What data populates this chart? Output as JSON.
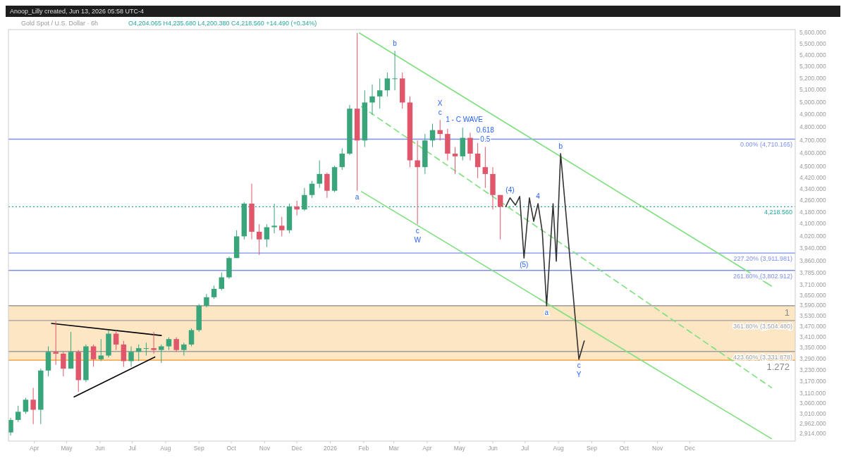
{
  "chart_data": {
    "type": "candlestick",
    "title": "Gold Spot / U.S. Dollar · 6h",
    "subtitle": "O4,204.065 H4,235.680 L4,200.380 C4,218.560 +14.490 (+0.34%)",
    "annotations": [
      "Anoop_Lilly created, Jun 13, 2026 05:58 UTC-4",
      {
        "text": "a",
        "x": "2026-01-26",
        "y": 4330
      },
      {
        "text": "b",
        "x": "2026-03-02",
        "y": 5440
      },
      {
        "text": "c",
        "x": "2026-03-23",
        "y": 4100
      },
      {
        "text": "W",
        "x": "2026-03-23",
        "y": 4100
      },
      {
        "text": "c",
        "x": "2026-04-13",
        "y": 4860
      },
      {
        "text": "X",
        "x": "2026-04-13",
        "y": 4860
      },
      {
        "text": "1 - C WAVE",
        "x": "2026-04-13",
        "y": 4860
      },
      {
        "text": "0.5",
        "x": "2026-05-25",
        "y": 4650
      },
      {
        "text": "0.618",
        "x": "2026-05-25",
        "y": 4650
      },
      {
        "text": "(4)",
        "x": "2026-06-17",
        "y": 4280
      },
      {
        "text": "4",
        "x": "2026-07-13",
        "y": 4240
      },
      {
        "text": "(5)",
        "x": "2026-06-30",
        "y": 3880
      },
      {
        "text": "a",
        "x": "2026-07-21",
        "y": 3590
      },
      {
        "text": "b",
        "x": "2026-08-03",
        "y": 4600
      },
      {
        "text": "c",
        "x": "2026-08-20",
        "y": 3290
      },
      {
        "text": "Y",
        "x": "2026-08-20",
        "y": 3290
      },
      {
        "text": "1",
        "x": "2027-03-09",
        "y": 3590
      },
      {
        "text": "1.272",
        "x": "2027-03-09",
        "y": 3285
      }
    ],
    "x": [
      "2025-03-10",
      "2025-03-17",
      "2025-03-24",
      "2025-03-31",
      "2025-04-07",
      "2025-04-14",
      "2025-04-21",
      "2025-04-28",
      "2025-05-05",
      "2025-05-12",
      "2025-05-19",
      "2025-05-26",
      "2025-06-02",
      "2025-06-09",
      "2025-06-16",
      "2025-06-23",
      "2025-06-30",
      "2025-07-07",
      "2025-07-14",
      "2025-07-21",
      "2025-07-28",
      "2025-08-04",
      "2025-08-11",
      "2025-08-18",
      "2025-08-25",
      "2025-09-01",
      "2025-09-08",
      "2025-09-15",
      "2025-09-22",
      "2025-09-29",
      "2025-10-06",
      "2025-10-13",
      "2025-10-20",
      "2025-10-27",
      "2025-11-03",
      "2025-11-10",
      "2025-11-17",
      "2025-11-24",
      "2025-12-01",
      "2025-12-08",
      "2025-12-15",
      "2025-12-22",
      "2025-12-29",
      "2026-01-05",
      "2026-01-12",
      "2026-01-19",
      "2026-01-26",
      "2026-02-02",
      "2026-02-09",
      "2026-02-16",
      "2026-02-23",
      "2026-03-02",
      "2026-03-09",
      "2026-03-16",
      "2026-03-23",
      "2026-03-30",
      "2026-04-06",
      "2026-04-13",
      "2026-04-20",
      "2026-04-27",
      "2026-05-04",
      "2026-05-11",
      "2026-05-18",
      "2026-05-25",
      "2026-06-01",
      "2026-06-08"
    ],
    "ohlc": [
      [
        2920,
        2990,
        2905,
        2980
      ],
      [
        2980,
        3050,
        2970,
        3020
      ],
      [
        3020,
        3090,
        3010,
        3080
      ],
      [
        3080,
        3140,
        2960,
        3030
      ],
      [
        3030,
        3240,
        2960,
        3230
      ],
      [
        3230,
        3360,
        3200,
        3330
      ],
      [
        3330,
        3500,
        3260,
        3320
      ],
      [
        3320,
        3330,
        3200,
        3240
      ],
      [
        3240,
        3440,
        3240,
        3330
      ],
      [
        3330,
        3340,
        3120,
        3180
      ],
      [
        3180,
        3370,
        3170,
        3360
      ],
      [
        3360,
        3370,
        3250,
        3290
      ],
      [
        3290,
        3400,
        3280,
        3310
      ],
      [
        3310,
        3450,
        3300,
        3430
      ],
      [
        3430,
        3450,
        3340,
        3370
      ],
      [
        3370,
        3390,
        3250,
        3280
      ],
      [
        3280,
        3360,
        3250,
        3330
      ],
      [
        3330,
        3370,
        3280,
        3350
      ],
      [
        3350,
        3380,
        3310,
        3350
      ],
      [
        3350,
        3440,
        3320,
        3340
      ],
      [
        3340,
        3370,
        3270,
        3360
      ],
      [
        3360,
        3410,
        3340,
        3400
      ],
      [
        3400,
        3410,
        3330,
        3340
      ],
      [
        3340,
        3380,
        3310,
        3370
      ],
      [
        3370,
        3460,
        3360,
        3450
      ],
      [
        3450,
        3600,
        3440,
        3590
      ],
      [
        3590,
        3660,
        3580,
        3640
      ],
      [
        3640,
        3710,
        3630,
        3690
      ],
      [
        3690,
        3790,
        3680,
        3760
      ],
      [
        3760,
        3890,
        3750,
        3880
      ],
      [
        3880,
        4060,
        3880,
        4020
      ],
      [
        4020,
        4250,
        4000,
        4240
      ],
      [
        4240,
        4380,
        4000,
        4050
      ],
      [
        4050,
        4100,
        3900,
        4000
      ],
      [
        4000,
        4100,
        3950,
        4080
      ],
      [
        4080,
        4240,
        4040,
        4090
      ],
      [
        4090,
        4150,
        4020,
        4060
      ],
      [
        4060,
        4240,
        4040,
        4220
      ],
      [
        4220,
        4260,
        4160,
        4200
      ],
      [
        4200,
        4350,
        4190,
        4300
      ],
      [
        4300,
        4400,
        4280,
        4380
      ],
      [
        4380,
        4550,
        4350,
        4450
      ],
      [
        4450,
        4460,
        4280,
        4330
      ],
      [
        4330,
        4510,
        4320,
        4500
      ],
      [
        4500,
        4640,
        4480,
        4600
      ],
      [
        4600,
        4980,
        4590,
        4950
      ],
      [
        4950,
        5600,
        4330,
        4700
      ],
      [
        4700,
        5100,
        4650,
        5000
      ],
      [
        5000,
        5150,
        4900,
        5050
      ],
      [
        5050,
        5200,
        4950,
        5100
      ],
      [
        5100,
        5250,
        5050,
        5200
      ],
      [
        5200,
        5440,
        5100,
        5200
      ],
      [
        5200,
        5250,
        4950,
        5000
      ],
      [
        5000,
        5050,
        4500,
        4550
      ],
      [
        4550,
        4700,
        4100,
        4500
      ],
      [
        4500,
        4750,
        4450,
        4700
      ],
      [
        4700,
        4830,
        4650,
        4780
      ],
      [
        4780,
        4860,
        4700,
        4750
      ],
      [
        4750,
        4790,
        4550,
        4600
      ],
      [
        4600,
        4650,
        4450,
        4580
      ],
      [
        4580,
        4800,
        4550,
        4720
      ],
      [
        4720,
        4760,
        4550,
        4600
      ],
      [
        4600,
        4680,
        4420,
        4500
      ],
      [
        4500,
        4650,
        4350,
        4450
      ],
      [
        4450,
        4500,
        4200,
        4300
      ],
      [
        4300,
        4300,
        4000,
        4218.56
      ]
    ],
    "series": [
      {
        "type": "line",
        "color": "#7ee07e",
        "x": [
          "2026-01-28",
          "2027-02-15"
        ],
        "values": [
          5600,
          3707
        ]
      },
      {
        "type": "line",
        "color": "#7ee07e",
        "line_style": "dashed",
        "x": [
          "2026-01-30",
          "2027-02-15"
        ],
        "values": [
          4967,
          3141
        ]
      },
      {
        "type": "line",
        "color": "#7ee07e",
        "x": [
          "2026-01-30",
          "2027-02-15"
        ],
        "values": [
          4324,
          2890
        ]
      },
      {
        "type": "line",
        "color": "#000000",
        "x": [
          "2025-04-17",
          "2025-07-28"
        ],
        "values": [
          3488,
          3420
        ]
      },
      {
        "type": "line",
        "color": "#000000",
        "x": [
          "2025-05-08",
          "2025-07-22"
        ],
        "values": [
          3094,
          3302
        ]
      },
      {
        "type": "line",
        "color": "#333333",
        "x": [
          "2026-06-13",
          "2026-06-17",
          "2026-06-22",
          "2026-06-26",
          "2026-06-30",
          "2026-07-05",
          "2026-07-09",
          "2026-07-13",
          "2026-07-17",
          "2026-07-21",
          "2026-07-27",
          "2026-07-30",
          "2026-08-03",
          "2026-08-20",
          "2026-08-25"
        ],
        "values": [
          4219,
          4280,
          4230,
          4290,
          3880,
          4280,
          4120,
          4240,
          4050,
          3590,
          4240,
          3860,
          4600,
          3290,
          3390
        ]
      }
    ],
    "bands": [
      {
        "axis": "y",
        "from": 3285,
        "to": 3590,
        "color": "#fde6c4"
      }
    ],
    "ref_lines": [
      {
        "axis": "y",
        "value": 4710.165,
        "label": "0.00% (4,710.165)",
        "color": "#7b8ff0"
      },
      {
        "axis": "y",
        "value": 4218.56,
        "label": "4,218.560",
        "color": "#26a69a",
        "line_style": "dotted"
      },
      {
        "axis": "y",
        "value": 3911.981,
        "label": "227.20% (3,911.981)",
        "color": "#7b8ff0"
      },
      {
        "axis": "y",
        "value": 3802.912,
        "label": "261.80% (3,802.912)",
        "color": "#7b8ff0"
      },
      {
        "axis": "y",
        "value": 3590,
        "color": "#888888"
      },
      {
        "axis": "y",
        "value": 3504.48,
        "label": "361.80% (3,504.480)",
        "color": "#9e9e9e"
      },
      {
        "axis": "y",
        "value": 3331.878,
        "label": "423.60% (3,331.878)",
        "color": "#9e9e9e"
      },
      {
        "axis": "y",
        "value": 3285,
        "color": "#f7931e"
      }
    ],
    "log": "y",
    "xlim": [
      "2025-03-08",
      "2027-03-09"
    ],
    "xticks": [
      {
        "value": "2025-04-01",
        "label": "Apr"
      },
      {
        "value": "2025-05-01",
        "label": "May"
      },
      {
        "value": "2025-06-01",
        "label": "Jun"
      },
      {
        "value": "2025-07-01",
        "label": "Jul"
      },
      {
        "value": "2025-08-01",
        "label": "Aug"
      },
      {
        "value": "2025-09-01",
        "label": "Sep"
      },
      {
        "value": "2025-10-01",
        "label": "Oct"
      },
      {
        "value": "2025-11-01",
        "label": "Nov"
      },
      {
        "value": "2025-12-01",
        "label": "Dec"
      },
      {
        "value": "2026-01-01",
        "label": "2026"
      },
      {
        "value": "2026-02-01",
        "label": "Feb"
      },
      {
        "value": "2026-03-01",
        "label": "Mar"
      },
      {
        "value": "2026-04-01",
        "label": "Apr"
      },
      {
        "value": "2026-05-01",
        "label": "May"
      },
      {
        "value": "2026-06-01",
        "label": "Jun"
      },
      {
        "value": "2026-07-01",
        "label": "Jul"
      },
      {
        "value": "2026-08-01",
        "label": "Aug"
      },
      {
        "value": "2026-09-01",
        "label": "Sep"
      },
      {
        "value": "2026-10-01",
        "label": "Oct"
      },
      {
        "value": "2026-11-01",
        "label": "Nov"
      },
      {
        "value": "2026-12-01",
        "label": "Dec"
      }
    ],
    "ylim": [
      2879,
      5631
    ],
    "yticks": [
      {
        "value": 5600,
        "label": "5,600.000"
      },
      {
        "value": 5500,
        "label": "5,500.000"
      },
      {
        "value": 5400,
        "label": "5,400.000"
      },
      {
        "value": 5300,
        "label": "5,300.000"
      },
      {
        "value": 5200,
        "label": "5,200.000"
      },
      {
        "value": 5100,
        "label": "5,100.000"
      },
      {
        "value": 5000,
        "label": "5,000.000"
      },
      {
        "value": 4900,
        "label": "4,900.000"
      },
      {
        "value": 4800,
        "label": "4,800.000"
      },
      {
        "value": 4700,
        "label": "4,700.000"
      },
      {
        "value": 4600,
        "label": "4,600.000"
      },
      {
        "value": 4500,
        "label": "4,500.000"
      },
      {
        "value": 4420,
        "label": "4,420.000"
      },
      {
        "value": 4340,
        "label": "4,340.000"
      },
      {
        "value": 4260,
        "label": "4,260.000"
      },
      {
        "value": 4180,
        "label": "4,180.000"
      },
      {
        "value": 4100,
        "label": "4,100.000"
      },
      {
        "value": 4020,
        "label": "4,020.000"
      },
      {
        "value": 3940,
        "label": "3,940.000"
      },
      {
        "value": 3860,
        "label": "3,860.000"
      },
      {
        "value": 3785,
        "label": "3,785.000"
      },
      {
        "value": 3710,
        "label": "3,710.000"
      },
      {
        "value": 3650,
        "label": "3,650.000"
      },
      {
        "value": 3590,
        "label": "3,590.000"
      },
      {
        "value": 3530,
        "label": "3,530.000"
      },
      {
        "value": 3470,
        "label": "3,470.000"
      },
      {
        "value": 3410,
        "label": "3,410.000"
      },
      {
        "value": 3350,
        "label": "3,350.000"
      },
      {
        "value": 3290,
        "label": "3,290.000"
      },
      {
        "value": 3230,
        "label": "3,230.000"
      },
      {
        "value": 3170,
        "label": "3,170.000"
      },
      {
        "value": 3110,
        "label": "3,110.000"
      },
      {
        "value": 3060,
        "label": "3,060.000"
      },
      {
        "value": 3010,
        "label": "3,010.000"
      },
      {
        "value": 2962,
        "label": "2,962.000"
      },
      {
        "value": 2914,
        "label": "2,914.000"
      }
    ]
  }
}
